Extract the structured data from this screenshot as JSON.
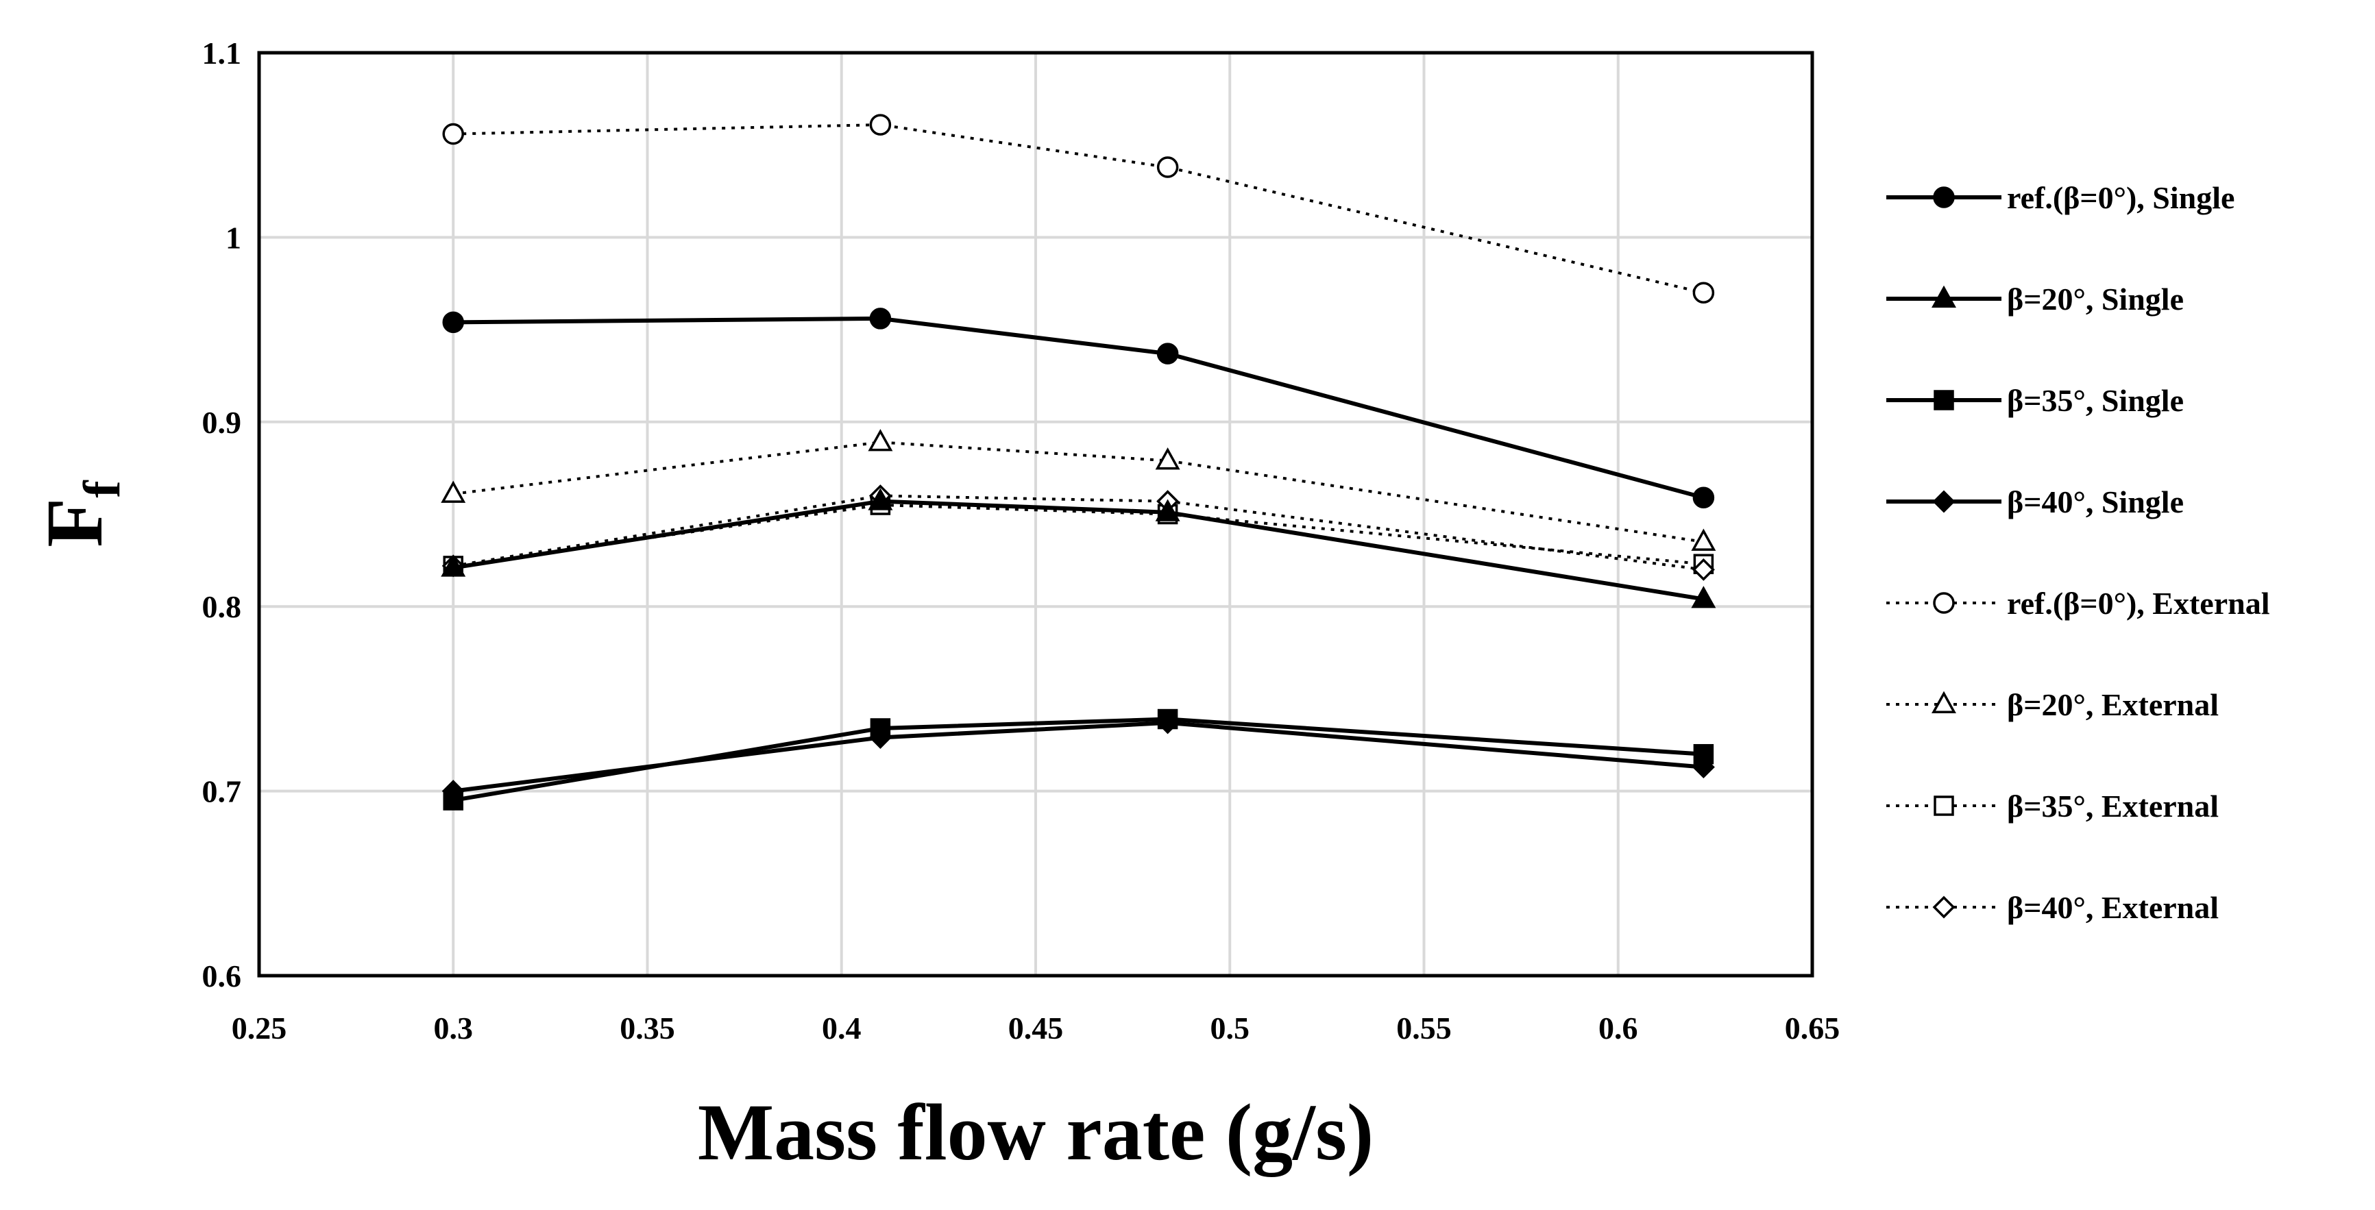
{
  "chart_data": {
    "type": "line",
    "title": "",
    "xlabel": "Mass flow rate (g/s)",
    "ylabel": {
      "main": "F",
      "sub": "f"
    },
    "xlim": [
      0.25,
      0.65
    ],
    "ylim": [
      0.6,
      1.1
    ],
    "xticks": [
      0.25,
      0.3,
      0.35,
      0.4,
      0.45,
      0.5,
      0.55,
      0.6,
      0.65
    ],
    "xtick_labels": [
      "0.25",
      "0.3",
      "0.35",
      "0.4",
      "0.45",
      "0.5",
      "0.55",
      "0.6",
      "0.65"
    ],
    "yticks": [
      0.6,
      0.7,
      0.8,
      0.9,
      1.0,
      1.1
    ],
    "ytick_labels": [
      "0.6",
      "0.7",
      "0.8",
      "0.9",
      "1",
      "1.1"
    ],
    "grid": true,
    "legend_position": "right",
    "x": [
      0.3,
      0.41,
      0.484,
      0.622
    ],
    "series": [
      {
        "name": "ref.(β=0°), Single",
        "values": [
          0.954,
          0.956,
          0.937,
          0.859
        ],
        "line": "solid",
        "marker": "circle",
        "filled": true
      },
      {
        "name": "β=20°, Single",
        "values": [
          0.821,
          0.857,
          0.851,
          0.804
        ],
        "line": "solid",
        "marker": "triangle",
        "filled": true
      },
      {
        "name": "β=35°, Single",
        "values": [
          0.695,
          0.734,
          0.739,
          0.72
        ],
        "line": "solid",
        "marker": "square",
        "filled": true
      },
      {
        "name": "β=40°, Single",
        "values": [
          0.7,
          0.729,
          0.737,
          0.713
        ],
        "line": "solid",
        "marker": "diamond",
        "filled": true
      },
      {
        "name": "ref.(β=0°), External",
        "values": [
          1.056,
          1.061,
          1.038,
          0.97
        ],
        "line": "dotted",
        "marker": "circle",
        "filled": false
      },
      {
        "name": "β=20°, External",
        "values": [
          0.861,
          0.889,
          0.879,
          0.835
        ],
        "line": "dotted",
        "marker": "triangle",
        "filled": false
      },
      {
        "name": "β=35°, External",
        "values": [
          0.822,
          0.855,
          0.85,
          0.823
        ],
        "line": "dotted",
        "marker": "square",
        "filled": false
      },
      {
        "name": "β=40°, External",
        "values": [
          0.822,
          0.86,
          0.857,
          0.82
        ],
        "line": "dotted",
        "marker": "diamond",
        "filled": false
      }
    ],
    "colors": {
      "line": "#000000",
      "grid": "#d9d9d9",
      "background": "#ffffff"
    }
  }
}
